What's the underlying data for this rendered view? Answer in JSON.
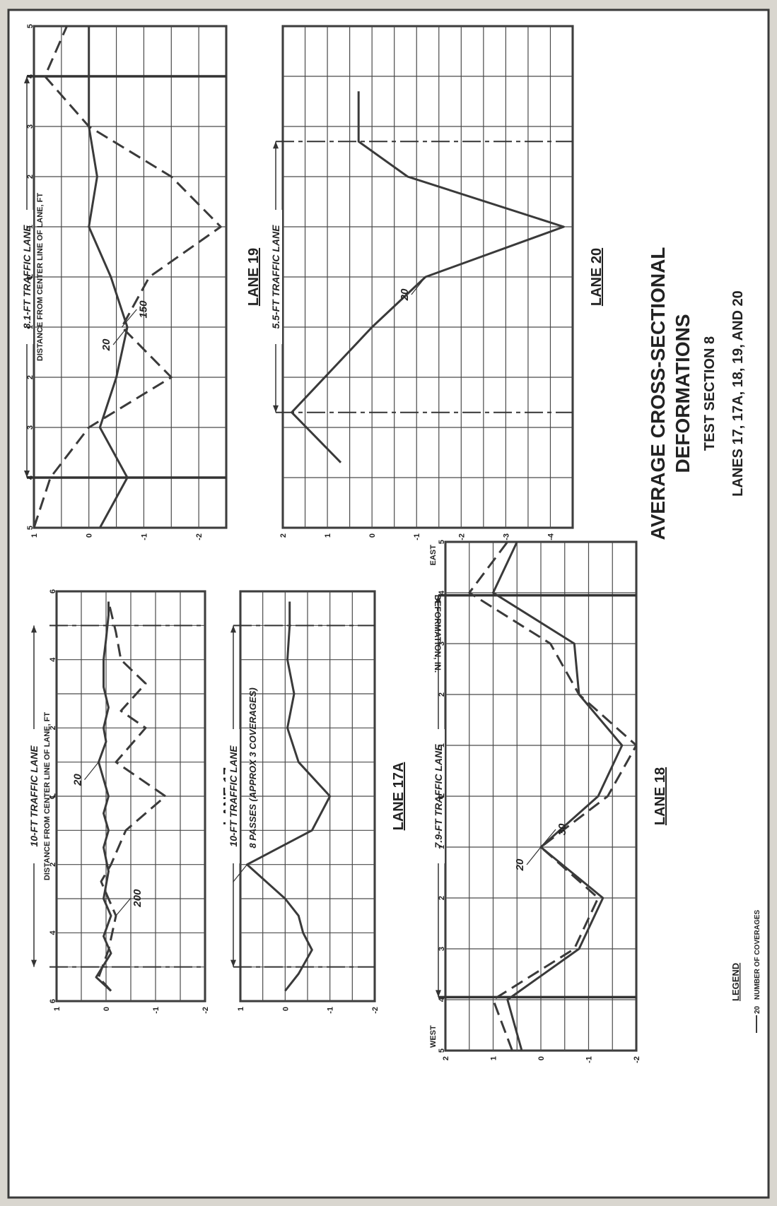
{
  "title": {
    "line1": "AVERAGE CROSS-SECTIONAL",
    "line2": "DEFORMATIONS",
    "line3": "TEST SECTION 8",
    "line4": "LANES 17, 17A, 18, 19, AND 20"
  },
  "shared_axis_label": "DEFORMATION, IN.",
  "legend": {
    "title": "LEGEND",
    "entry_number": "20",
    "entry_text": "NUMBER OF COVERAGES"
  },
  "colors": {
    "paper": "#ffffff",
    "ink": "#3a3a3a",
    "background": "#d9d6cf"
  },
  "chart_data": [
    {
      "id": "lane17",
      "type": "line",
      "lane_title": "LANE 17",
      "traffic_lane_label": "10-FT TRAFFIC LANE",
      "distance_label": "DISTANCE FROM CENTER LINE OF LANE, FT",
      "x_ticks": [
        "6",
        "4",
        "2",
        "℄",
        "2",
        "4",
        "6"
      ],
      "y_ticks": [
        "1",
        "0",
        "-1",
        "-2"
      ],
      "xlim": [
        -6,
        6
      ],
      "ylim": [
        1,
        -2
      ],
      "traffic_lane_extent": [
        -5,
        5
      ],
      "series": [
        {
          "name": "20",
          "style": "solid",
          "x": [
            -5.7,
            -5.3,
            -4.6,
            -4.1,
            -3.5,
            -3.0,
            -2.2,
            -1.5,
            -1.0,
            -0.5,
            0.0,
            0.5,
            1.0,
            1.6,
            2.0,
            2.6,
            3.2,
            4.0,
            4.6,
            5.3,
            5.7
          ],
          "y": [
            -0.1,
            0.2,
            -0.1,
            0.05,
            -0.1,
            0.05,
            -0.05,
            0.05,
            -0.05,
            0.05,
            -0.05,
            0.05,
            0.15,
            0.0,
            0.05,
            -0.05,
            0.05,
            0.05,
            0.0,
            -0.05,
            -0.05
          ]
        },
        {
          "name": "200",
          "style": "dash",
          "x": [
            -5.7,
            -5.3,
            -4.5,
            -3.5,
            -2.5,
            -2.0,
            -1.0,
            0.0,
            1.0,
            2.0,
            2.5,
            3.3,
            4.0,
            4.8,
            5.7
          ],
          "y": [
            -0.1,
            0.15,
            -0.05,
            -0.2,
            0.1,
            -0.1,
            -0.4,
            -1.2,
            -0.2,
            -0.8,
            -0.3,
            -0.8,
            -0.3,
            -0.2,
            -0.05
          ]
        }
      ]
    },
    {
      "id": "lane17a",
      "type": "line",
      "lane_title": "LANE 17A",
      "traffic_lane_label": "10-FT TRAFFIC LANE",
      "x_ticks": [],
      "y_ticks": [
        "1",
        "0",
        "-1",
        "-2"
      ],
      "xlim": [
        -6,
        6
      ],
      "ylim": [
        1,
        -2
      ],
      "traffic_lane_extent": [
        -5,
        5
      ],
      "annotation": "8 PASSES (APPROX 3 COVERAGES)",
      "series": [
        {
          "name": "8 PASSES",
          "style": "solid",
          "x": [
            -5.7,
            -5.2,
            -4.5,
            -4.0,
            -3.5,
            -3.0,
            -2.0,
            -1.0,
            0.0,
            1.0,
            2.0,
            3.0,
            4.0,
            5.0,
            5.7
          ],
          "y": [
            0.0,
            -0.3,
            -0.6,
            -0.4,
            -0.3,
            0.0,
            0.85,
            -0.6,
            -1.0,
            -0.3,
            -0.05,
            -0.2,
            -0.05,
            -0.1,
            -0.1
          ]
        }
      ]
    },
    {
      "id": "lane18",
      "type": "line",
      "lane_title": "LANE 18",
      "traffic_lane_label": "7.9-FT TRAFFIC LANE",
      "x_ticks": [
        "5",
        "4",
        "3",
        "2",
        "1",
        "℄",
        "1",
        "2",
        "3",
        "4",
        "5"
      ],
      "y_ticks": [
        "2",
        "1",
        "0",
        "-1",
        "-2"
      ],
      "xlim": [
        -5,
        5
      ],
      "ylim": [
        2,
        -2
      ],
      "traffic_lane_extent": [
        -3.95,
        3.95
      ],
      "side_labels": [
        "WEST",
        "EAST"
      ],
      "series": [
        {
          "name": "20",
          "style": "solid",
          "x": [
            -5.0,
            -4.0,
            -3.0,
            -2.0,
            -1.0,
            0.0,
            1.0,
            2.0,
            3.0,
            4.0,
            5.0
          ],
          "y": [
            0.4,
            0.7,
            -0.8,
            -1.3,
            0.0,
            -1.2,
            -1.7,
            -0.8,
            -0.7,
            1.0,
            0.5
          ]
        },
        {
          "name": "30",
          "style": "dash",
          "x": [
            -5.0,
            -4.0,
            -3.0,
            -2.0,
            -1.0,
            0.0,
            1.0,
            2.0,
            3.0,
            4.0,
            5.0
          ],
          "y": [
            0.6,
            1.0,
            -0.7,
            -1.2,
            0.0,
            -1.4,
            -2.0,
            -0.8,
            -0.2,
            1.5,
            0.7
          ]
        }
      ]
    },
    {
      "id": "lane19",
      "type": "line",
      "lane_title": "LANE 19",
      "traffic_lane_label": "8.1-FT TRAFFIC LANE",
      "distance_label": "DISTANCE FROM CENTER LINE OF LANE, FT",
      "x_ticks": [
        "5",
        "4",
        "3",
        "2",
        "1",
        "℄",
        "1",
        "2",
        "3",
        "4",
        "5"
      ],
      "y_ticks": [
        "1",
        "0",
        "-1",
        "-2"
      ],
      "xlim": [
        -5,
        5
      ],
      "ylim": [
        1,
        -2.5
      ],
      "traffic_lane_extent": [
        -4,
        4
      ],
      "series": [
        {
          "name": "20",
          "style": "solid",
          "x": [
            -5.0,
            -4.0,
            -3.0,
            -2.0,
            -1.0,
            0.0,
            1.0,
            2.0,
            3.0,
            4.0,
            5.0
          ],
          "y": [
            -0.2,
            -0.7,
            -0.2,
            -0.5,
            -0.7,
            -0.4,
            0.0,
            -0.15,
            0.0,
            0.0,
            0.0
          ]
        },
        {
          "name": "150",
          "style": "dash",
          "x": [
            -5.0,
            -4.0,
            -3.0,
            -2.0,
            -1.0,
            0.0,
            1.0,
            2.0,
            3.0,
            4.0,
            5.0
          ],
          "y": [
            1.0,
            0.7,
            0.0,
            -1.5,
            -0.6,
            -1.1,
            -2.4,
            -1.5,
            0.0,
            0.8,
            0.4
          ]
        }
      ]
    },
    {
      "id": "lane20",
      "type": "line",
      "lane_title": "LANE 20",
      "traffic_lane_label": "5.5-FT TRAFFIC LANE",
      "x_ticks": [],
      "y_ticks": [
        "2",
        "1",
        "0",
        "-1",
        "-2",
        "-3",
        "-4"
      ],
      "xlim": [
        -5,
        5
      ],
      "ylim": [
        2,
        -4.5
      ],
      "traffic_lane_extent": [
        -2.7,
        2.7
      ],
      "series": [
        {
          "name": "20",
          "style": "solid",
          "x": [
            -3.7,
            -2.7,
            -1.0,
            0.0,
            1.0,
            2.0,
            2.7,
            3.7
          ],
          "y": [
            0.7,
            1.8,
            0.0,
            -1.2,
            -4.3,
            -0.8,
            0.3,
            0.3
          ]
        }
      ]
    }
  ]
}
